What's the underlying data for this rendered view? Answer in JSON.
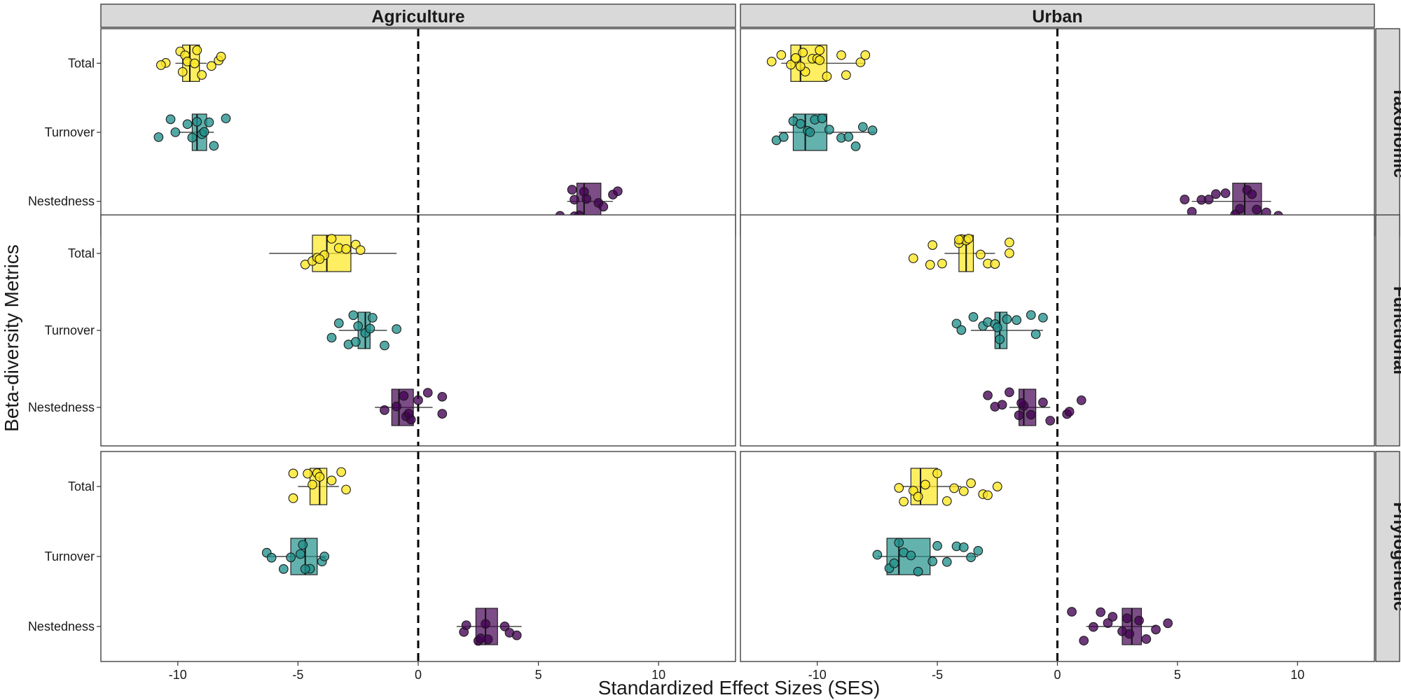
{
  "chart_data": {
    "type": "boxplot",
    "xlabel": "Standardized Effect Sizes (SES)",
    "ylabel": "Beta-diversity Metrics",
    "xlim": [
      -13.2,
      13.2
    ],
    "x_ticks": [
      -10,
      -5,
      0,
      5,
      10
    ],
    "reference_line": {
      "x": 0,
      "style": "dashed"
    },
    "col_facets": [
      "Agriculture",
      "Urban"
    ],
    "row_facets": [
      "Taxonomic",
      "Functional",
      "Phylogenetic"
    ],
    "categories": [
      "Total",
      "Turnover",
      "Nestedness"
    ],
    "colors": {
      "Total": "#FDE725",
      "Turnover": "#21918C",
      "Nestedness": "#440154"
    },
    "panels": [
      {
        "column": "Agriculture",
        "row": "Taxonomic",
        "groups": {
          "Total": {
            "whisker_low": -10.1,
            "q1": -9.8,
            "median": -9.5,
            "q3": -9.1,
            "whisker_high": -8.8,
            "points": [
              -10.5,
              -10.7,
              -9.9,
              -9.7,
              -9.6,
              -9.3,
              -9.2,
              -9.0,
              -8.6,
              -8.3,
              -8.2,
              -9.8
            ]
          },
          "Turnover": {
            "whisker_low": -10.0,
            "q1": -9.4,
            "median": -9.2,
            "q3": -8.8,
            "whisker_high": -8.5,
            "points": [
              -10.8,
              -10.3,
              -10.1,
              -9.6,
              -9.4,
              -9.2,
              -9.0,
              -8.9,
              -8.7,
              -8.0,
              -8.5
            ]
          },
          "Nestedness": {
            "whisker_low": 6.2,
            "q1": 6.6,
            "median": 6.9,
            "q3": 7.6,
            "whisker_high": 8.1,
            "points": [
              5.9,
              6.4,
              6.5,
              6.7,
              6.9,
              7.0,
              7.5,
              7.7,
              8.1,
              8.3,
              6.5
            ]
          }
        }
      },
      {
        "column": "Urban",
        "row": "Taxonomic",
        "groups": {
          "Total": {
            "whisker_low": -11.5,
            "q1": -11.1,
            "median": -10.7,
            "q3": -9.6,
            "whisker_high": -8.0,
            "points": [
              -11.9,
              -11.5,
              -11.1,
              -10.9,
              -10.6,
              -10.5,
              -10.2,
              -10.0,
              -9.9,
              -9.6,
              -9.0,
              -8.8,
              -8.2,
              -8.0,
              -10.7,
              -9.9
            ]
          },
          "Turnover": {
            "whisker_low": -11.6,
            "q1": -11.0,
            "median": -10.5,
            "q3": -9.6,
            "whisker_high": -7.6,
            "points": [
              -11.7,
              -11.4,
              -11.0,
              -10.7,
              -10.4,
              -10.1,
              -9.8,
              -9.5,
              -9.0,
              -8.7,
              -8.4,
              -8.1,
              -7.7,
              -10.3
            ]
          },
          "Nestedness": {
            "whisker_low": 5.6,
            "q1": 7.3,
            "median": 7.8,
            "q3": 8.5,
            "whisker_high": 8.9,
            "points": [
              5.3,
              5.6,
              6.0,
              6.3,
              6.6,
              7.0,
              7.6,
              7.9,
              8.1,
              8.3,
              8.7,
              9.2,
              7.4
            ]
          }
        }
      },
      {
        "column": "Agriculture",
        "row": "Functional",
        "groups": {
          "Total": {
            "whisker_low": -6.2,
            "q1": -4.4,
            "median": -3.8,
            "q3": -2.8,
            "whisker_high": -0.9,
            "points": [
              -4.7,
              -4.4,
              -4.2,
              -3.9,
              -3.6,
              -3.3,
              -3.0,
              -2.6,
              -2.4,
              -4.1
            ]
          },
          "Turnover": {
            "whisker_low": -3.3,
            "q1": -2.5,
            "median": -2.2,
            "q3": -2.0,
            "whisker_high": -1.3,
            "points": [
              -3.6,
              -3.3,
              -2.9,
              -2.7,
              -2.5,
              -2.2,
              -2.0,
              -1.9,
              -1.4,
              -0.9,
              -2.6
            ]
          },
          "Nestedness": {
            "whisker_low": -1.8,
            "q1": -1.1,
            "median": -0.8,
            "q3": -0.2,
            "whisker_high": 0.6,
            "points": [
              -1.4,
              -0.9,
              -0.6,
              -0.5,
              -0.3,
              0.0,
              0.4,
              1.0,
              1.0,
              -0.4
            ]
          }
        }
      },
      {
        "column": "Urban",
        "row": "Functional",
        "groups": {
          "Total": {
            "whisker_low": -4.7,
            "q1": -4.1,
            "median": -3.8,
            "q3": -3.5,
            "whisker_high": -2.6,
            "points": [
              -6.0,
              -5.3,
              -5.2,
              -4.8,
              -4.1,
              -4.0,
              -3.8,
              -3.7,
              -3.2,
              -2.9,
              -2.6,
              -2.0,
              -2.0,
              -4.1
            ]
          },
          "Turnover": {
            "whisker_low": -3.6,
            "q1": -2.6,
            "median": -2.4,
            "q3": -2.1,
            "whisker_high": -0.6,
            "points": [
              -4.2,
              -4.0,
              -3.5,
              -3.1,
              -2.9,
              -2.6,
              -2.4,
              -2.1,
              -1.7,
              -1.1,
              -0.9,
              -0.6,
              -2.5
            ]
          },
          "Nestedness": {
            "whisker_low": -2.0,
            "q1": -1.6,
            "median": -1.4,
            "q3": -0.9,
            "whisker_high": -0.3,
            "points": [
              -2.9,
              -2.6,
              -2.3,
              -2.0,
              -1.6,
              -1.4,
              -1.1,
              -0.6,
              -0.3,
              0.4,
              0.5,
              1.0,
              -1.5
            ]
          }
        }
      },
      {
        "column": "Agriculture",
        "row": "Phylogenetic",
        "groups": {
          "Total": {
            "whisker_low": -5.0,
            "q1": -4.5,
            "median": -4.1,
            "q3": -3.8,
            "whisker_high": -3.3,
            "points": [
              -5.2,
              -5.2,
              -4.6,
              -4.2,
              -4.1,
              -3.6,
              -3.2,
              -3.0,
              -4.4
            ]
          },
          "Turnover": {
            "whisker_low": -6.3,
            "q1": -5.3,
            "median": -4.7,
            "q3": -4.2,
            "whisker_high": -3.8,
            "points": [
              -6.3,
              -6.1,
              -5.6,
              -5.3,
              -4.9,
              -4.8,
              -4.5,
              -4.0,
              -3.9,
              -4.7
            ]
          },
          "Nestedness": {
            "whisker_low": 1.6,
            "q1": 2.4,
            "median": 2.8,
            "q3": 3.3,
            "whisker_high": 4.3,
            "points": [
              1.9,
              2.0,
              2.5,
              2.6,
              2.8,
              3.6,
              3.8,
              4.1,
              2.9
            ]
          }
        }
      },
      {
        "column": "Urban",
        "row": "Phylogenetic",
        "groups": {
          "Total": {
            "whisker_low": -6.5,
            "q1": -6.1,
            "median": -5.7,
            "q3": -5.0,
            "whisker_high": -4.0,
            "points": [
              -6.6,
              -6.4,
              -6.0,
              -5.8,
              -5.5,
              -5.0,
              -4.6,
              -4.3,
              -3.9,
              -3.6,
              -3.1,
              -2.9,
              -2.5
            ]
          },
          "Turnover": {
            "whisker_low": -7.5,
            "q1": -7.1,
            "median": -6.6,
            "q3": -5.3,
            "whisker_high": -3.3,
            "points": [
              -7.5,
              -7.0,
              -6.8,
              -6.6,
              -6.4,
              -6.1,
              -5.8,
              -5.2,
              -5.0,
              -4.6,
              -4.2,
              -3.9,
              -3.6,
              -3.3
            ]
          },
          "Nestedness": {
            "whisker_low": 1.2,
            "q1": 2.7,
            "median": 3.1,
            "q3": 3.5,
            "whisker_high": 4.1,
            "points": [
              0.6,
              1.1,
              1.5,
              1.8,
              2.1,
              2.3,
              2.7,
              2.9,
              3.0,
              3.4,
              3.7,
              4.1,
              4.6
            ]
          }
        }
      }
    ]
  }
}
